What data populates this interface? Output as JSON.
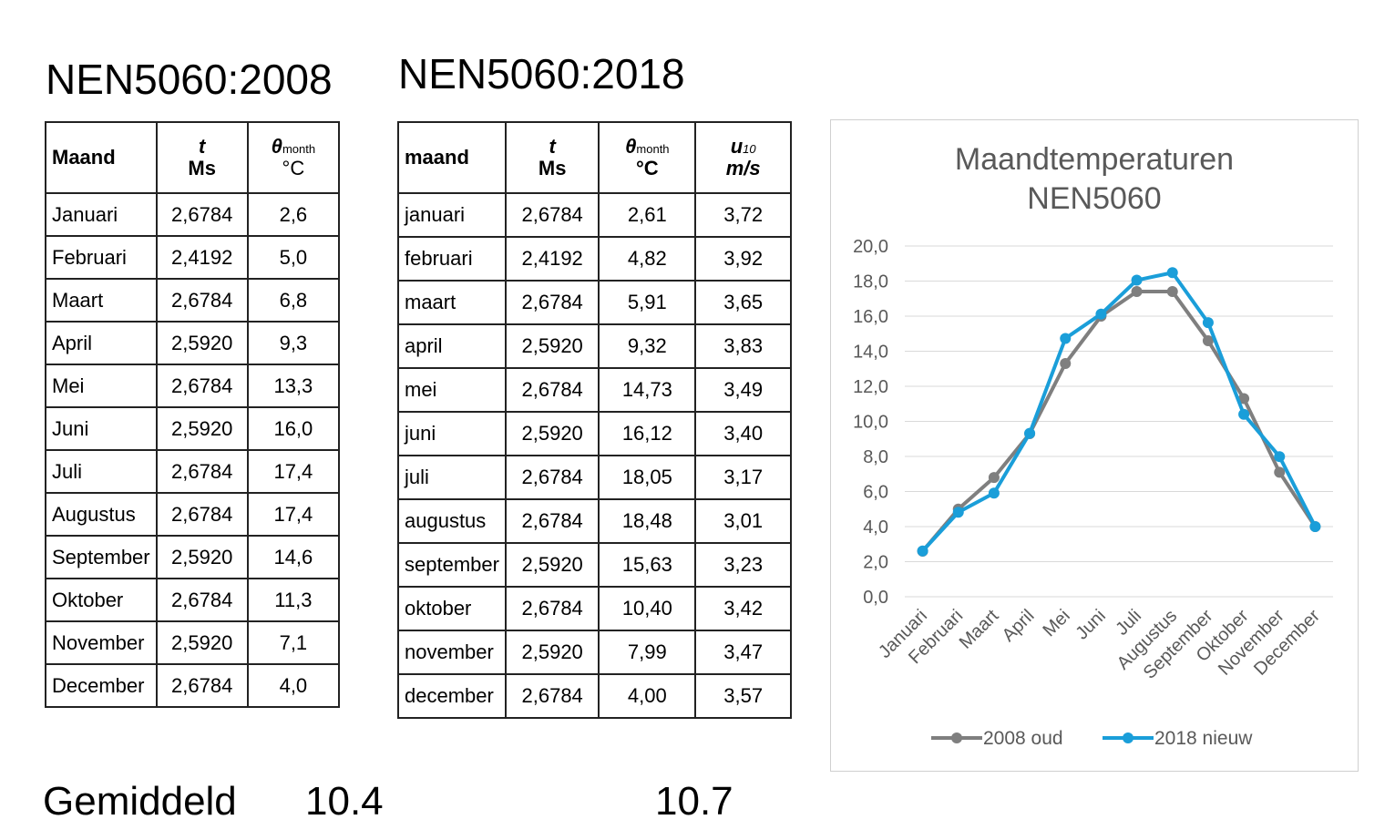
{
  "headings": {
    "left": "NEN5060:2008",
    "right": "NEN5060:2018"
  },
  "table2008": {
    "headers": {
      "month": "Maand",
      "t": "t",
      "t_unit": "Ms",
      "theta": "θ",
      "theta_sub": "month",
      "theta_unit": "°C"
    },
    "rows": [
      [
        "Januari",
        "2,6784",
        "2,6"
      ],
      [
        "Februari",
        "2,4192",
        "5,0"
      ],
      [
        "Maart",
        "2,6784",
        "6,8"
      ],
      [
        "April",
        "2,5920",
        "9,3"
      ],
      [
        "Mei",
        "2,6784",
        "13,3"
      ],
      [
        "Juni",
        "2,5920",
        "16,0"
      ],
      [
        "Juli",
        "2,6784",
        "17,4"
      ],
      [
        "Augustus",
        "2,6784",
        "17,4"
      ],
      [
        "September",
        "2,5920",
        "14,6"
      ],
      [
        "Oktober",
        "2,6784",
        "11,3"
      ],
      [
        "November",
        "2,5920",
        "7,1"
      ],
      [
        "December",
        "2,6784",
        "4,0"
      ]
    ]
  },
  "table2018": {
    "headers": {
      "month": "maand",
      "t": "t",
      "t_unit": "Ms",
      "theta": "θ",
      "theta_sub": "month",
      "theta_unit": "°C",
      "u": "u",
      "u_sub": "10",
      "u_unit": "m/s"
    },
    "rows": [
      [
        "januari",
        "2,6784",
        "2,61",
        "3,72"
      ],
      [
        "februari",
        "2,4192",
        "4,82",
        "3,92"
      ],
      [
        "maart",
        "2,6784",
        "5,91",
        "3,65"
      ],
      [
        "april",
        "2,5920",
        "9,32",
        "3,83"
      ],
      [
        "mei",
        "2,6784",
        "14,73",
        "3,49"
      ],
      [
        "juni",
        "2,5920",
        "16,12",
        "3,40"
      ],
      [
        "juli",
        "2,6784",
        "18,05",
        "3,17"
      ],
      [
        "augustus",
        "2,6784",
        "18,48",
        "3,01"
      ],
      [
        "september",
        "2,5920",
        "15,63",
        "3,23"
      ],
      [
        "oktober",
        "2,6784",
        "10,40",
        "3,42"
      ],
      [
        "november",
        "2,5920",
        "7,99",
        "3,47"
      ],
      [
        "december",
        "2,6784",
        "4,00",
        "3,57"
      ]
    ]
  },
  "footer": {
    "label": "Gemiddeld",
    "avg2008": "10.4",
    "avg2018": "10.7"
  },
  "chart_data": {
    "type": "line",
    "title": "Maandtemperaturen",
    "subtitle": "NEN5060",
    "categories": [
      "Januari",
      "Februari",
      "Maart",
      "April",
      "Mei",
      "Juni",
      "Juli",
      "Augustus",
      "September",
      "Oktober",
      "November",
      "December"
    ],
    "series": [
      {
        "name": "2008 oud",
        "color": "#7f7f7f",
        "values": [
          2.6,
          5.0,
          6.8,
          9.3,
          13.3,
          16.0,
          17.4,
          17.4,
          14.6,
          11.3,
          7.1,
          4.0
        ]
      },
      {
        "name": "2018 nieuw",
        "color": "#1a9ed9",
        "values": [
          2.61,
          4.82,
          5.91,
          9.32,
          14.73,
          16.12,
          18.05,
          18.48,
          15.63,
          10.4,
          7.99,
          4.0
        ]
      }
    ],
    "ylim": [
      0,
      20
    ],
    "yticks": [
      "0,0",
      "2,0",
      "4,0",
      "6,0",
      "8,0",
      "10,0",
      "12,0",
      "14,0",
      "16,0",
      "18,0",
      "20,0"
    ],
    "grid": true,
    "legend": "bottom"
  }
}
